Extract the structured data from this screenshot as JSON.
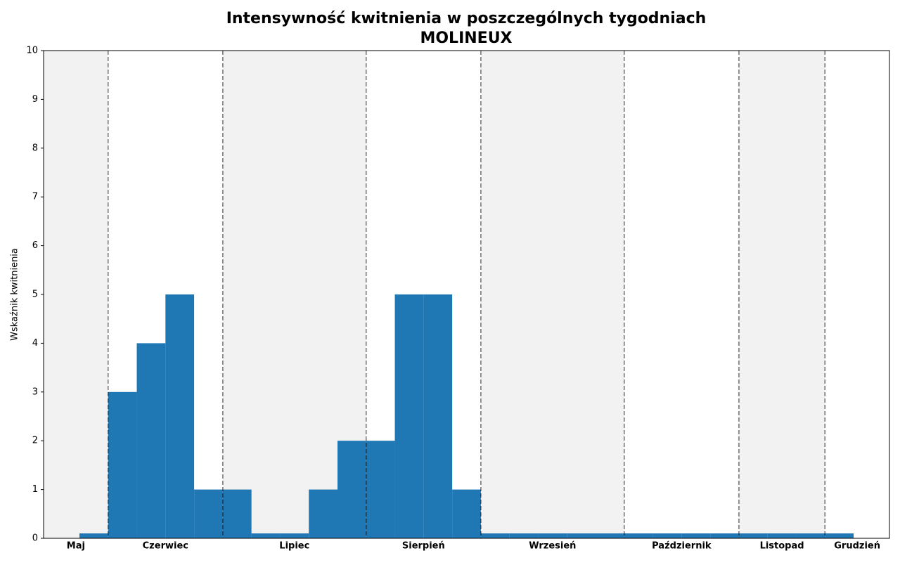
{
  "chart_data": {
    "type": "histogram",
    "title": "Intensywność kwitnienia w poszczególnych tygodniach",
    "subtitle": "MOLINEUX",
    "y_label": "Wskaźnik kwitnienia",
    "bins": [
      0,
      1,
      2,
      3,
      4,
      5,
      6,
      7,
      8,
      9,
      10,
      11,
      12,
      13,
      14,
      15,
      16,
      17,
      18,
      19,
      20,
      21,
      22,
      23,
      24,
      25,
      26,
      27
    ],
    "values": [
      0.1,
      3,
      4,
      5,
      1,
      1,
      0.1,
      0.1,
      1,
      2,
      2,
      5,
      5,
      1,
      0.1,
      0.1,
      0.1,
      0.1,
      0.1,
      0.1,
      0.1,
      0.1,
      0.1,
      0.1,
      0.1,
      0.1,
      0.1
    ],
    "color": "#1f77b4",
    "months": [
      "Maj",
      "Czerwiec",
      "Lipiec",
      "Sierpień",
      "Wrzesień",
      "Październik",
      "Listopad",
      "Grudzień"
    ],
    "month_boundaries": [
      1,
      5,
      10,
      14,
      19,
      23,
      26
    ],
    "xlim": [
      -1.25,
      28.25
    ],
    "ylim": [
      0,
      10
    ],
    "yticks": [
      0,
      1,
      2,
      3,
      4,
      5,
      6,
      7,
      8,
      9,
      10
    ]
  }
}
